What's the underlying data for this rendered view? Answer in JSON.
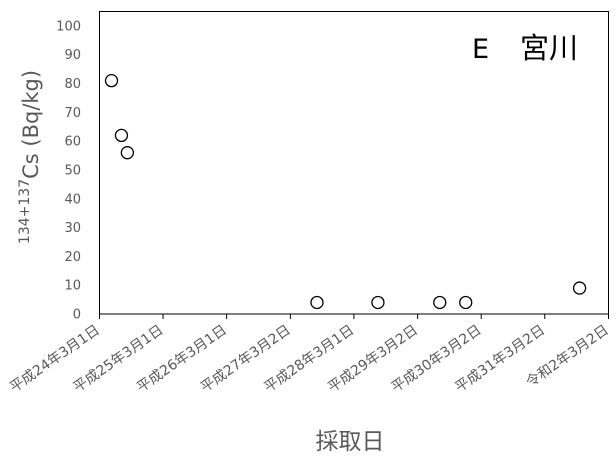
{
  "chart_data": {
    "type": "scatter",
    "title": {
      "letter": "E",
      "name": "宮川"
    },
    "xlabel": "採取日",
    "ylabel": {
      "superscript": "134+137",
      "main": "Cs (Bq/kg)"
    },
    "xlim": [
      "2012-03-01",
      "2020-03-02"
    ],
    "ylim": [
      0,
      105
    ],
    "yticks": [
      0,
      10,
      20,
      30,
      40,
      50,
      60,
      70,
      80,
      90,
      100
    ],
    "xticks": [
      {
        "label": "平成24年3月1日",
        "date": "2012-03-01"
      },
      {
        "label": "平成25年3月1日",
        "date": "2013-03-01"
      },
      {
        "label": "平成26年3月1日",
        "date": "2014-03-01"
      },
      {
        "label": "平成27年3月2日",
        "date": "2015-03-02"
      },
      {
        "label": "平成28年3月1日",
        "date": "2016-03-01"
      },
      {
        "label": "平成29年3月2日",
        "date": "2017-03-02"
      },
      {
        "label": "平成30年3月2日",
        "date": "2018-03-02"
      },
      {
        "label": "平成31年3月2日",
        "date": "2019-03-02"
      },
      {
        "label": "令和2年3月2日",
        "date": "2020-03-02"
      }
    ],
    "grid": false,
    "legend": "none",
    "series": [
      {
        "marker": "open-circle",
        "points": [
          {
            "x": "2012-05-09",
            "y": 81
          },
          {
            "x": "2012-07-05",
            "y": 62
          },
          {
            "x": "2012-08-08",
            "y": 56
          },
          {
            "x": "2015-08-02",
            "y": 4
          },
          {
            "x": "2016-07-17",
            "y": 4
          },
          {
            "x": "2017-07-07",
            "y": 4
          },
          {
            "x": "2017-12-03",
            "y": 4
          },
          {
            "x": "2019-09-18",
            "y": 9
          }
        ]
      }
    ],
    "colors": {
      "axis": "#000000",
      "tick_text": "#595959",
      "axis_title": "#595959",
      "title_text": "#000000",
      "marker_stroke": "#000000",
      "marker_fill": "#ffffff"
    }
  }
}
